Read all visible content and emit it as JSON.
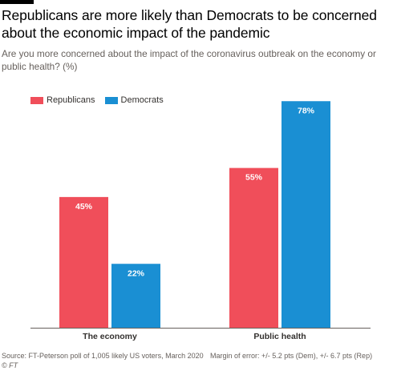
{
  "title": "Republicans are more likely than Democrats to be concerned about the economic impact of the pandemic",
  "subtitle": "Are you more concerned about the impact of the coronavirus outbreak on the economy or public health? (%)",
  "source": "Source: FT-Peterson poll of 1,005 likely US voters, March 2020",
  "margin_of_error": "Margin of error: +/- 5.2 pts (Dem), +/- 6.7 pts (Rep)",
  "copyright": "© FT",
  "colors": {
    "republicans": "#f04e5a",
    "democrats": "#1a8fd3"
  },
  "chart_data": {
    "type": "bar",
    "categories": [
      "The economy",
      "Public health"
    ],
    "series": [
      {
        "name": "Republicans",
        "values": [
          45,
          55
        ],
        "labels": [
          "45%",
          "55%"
        ],
        "color": "#f04e5a"
      },
      {
        "name": "Democrats",
        "values": [
          22,
          78
        ],
        "labels": [
          "22%",
          "78%"
        ],
        "color": "#1a8fd3"
      }
    ],
    "ylim": [
      0,
      80
    ],
    "grid": false,
    "legend": "top-left"
  }
}
